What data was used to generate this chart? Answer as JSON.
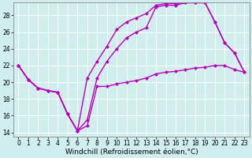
{
  "xlabel": "Windchill (Refroidissement éolien,°C)",
  "bg_color": "#d0eeee",
  "line_color": "#bb00bb",
  "xlim": [
    -0.5,
    23.5
  ],
  "ylim": [
    13.5,
    29.5
  ],
  "xticks": [
    0,
    1,
    2,
    3,
    4,
    5,
    6,
    7,
    8,
    9,
    10,
    11,
    12,
    13,
    14,
    15,
    16,
    17,
    18,
    19,
    20,
    21,
    22,
    23
  ],
  "yticks": [
    14,
    16,
    18,
    20,
    22,
    24,
    26,
    28
  ],
  "line1_x": [
    0,
    1,
    2,
    3,
    4,
    5,
    6,
    7,
    8,
    9,
    10,
    11,
    12,
    13,
    14,
    15,
    16,
    17,
    18,
    19,
    20,
    21,
    22,
    23
  ],
  "line1_y": [
    22.0,
    20.3,
    19.3,
    19.0,
    18.8,
    16.2,
    14.2,
    14.8,
    19.5,
    19.5,
    19.8,
    20.0,
    20.2,
    20.5,
    21.0,
    21.2,
    21.3,
    21.5,
    21.7,
    21.8,
    22.0,
    22.0,
    21.5,
    21.2
  ],
  "line2_x": [
    0,
    1,
    2,
    3,
    4,
    5,
    6,
    7,
    8,
    9,
    10,
    11,
    12,
    13,
    14,
    15,
    16,
    17,
    18,
    19,
    20,
    21,
    22,
    23
  ],
  "line2_y": [
    22.0,
    20.3,
    19.3,
    19.0,
    18.8,
    16.2,
    14.2,
    20.5,
    22.5,
    24.3,
    26.3,
    27.2,
    27.7,
    28.2,
    29.2,
    29.4,
    29.4,
    29.5,
    29.5,
    29.5,
    27.2,
    24.7,
    23.5,
    21.2
  ],
  "line3_x": [
    0,
    1,
    2,
    3,
    4,
    5,
    6,
    7,
    8,
    9,
    10,
    11,
    12,
    13,
    14,
    15,
    16,
    17,
    18,
    19,
    20,
    21,
    22,
    23
  ],
  "line3_y": [
    22.0,
    20.3,
    19.3,
    19.0,
    18.8,
    16.2,
    14.2,
    15.5,
    20.5,
    22.5,
    24.0,
    25.3,
    26.0,
    26.5,
    29.0,
    29.2,
    29.2,
    29.5,
    29.5,
    29.5,
    27.2,
    24.7,
    23.5,
    21.2
  ],
  "marker": "D",
  "markersize": 2.5,
  "linewidth": 1.0,
  "tick_fontsize": 5.5,
  "xlabel_fontsize": 6.5
}
